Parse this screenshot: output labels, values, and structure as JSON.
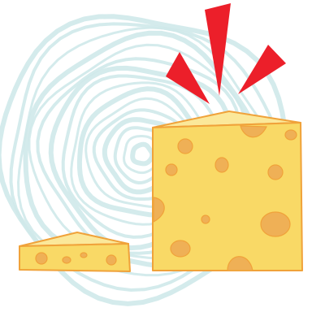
{
  "colors": {
    "background": "#ffffff",
    "swirl": "#cfe9ea",
    "cheese_fill": "#f9d966",
    "cheese_top": "#fbe89a",
    "cheese_outline": "#f0a23a",
    "hole_fill": "#efb056",
    "burst_fill": "#ec1f2a"
  }
}
